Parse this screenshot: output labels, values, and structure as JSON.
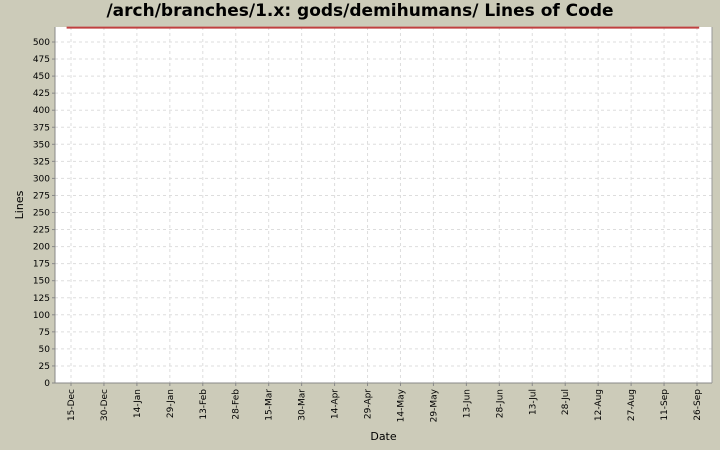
{
  "chart_data": {
    "type": "line",
    "title": "/arch/branches/1.x: gods/demihumans/ Lines of Code",
    "xlabel": "Date",
    "ylabel": "Lines",
    "ylim": [
      0,
      522
    ],
    "yticks": [
      0,
      25,
      50,
      75,
      100,
      125,
      150,
      175,
      200,
      225,
      250,
      275,
      300,
      325,
      350,
      375,
      400,
      425,
      450,
      475,
      500
    ],
    "xticks": [
      "15-Dec",
      "30-Dec",
      "14-Jan",
      "29-Jan",
      "13-Feb",
      "28-Feb",
      "15-Mar",
      "30-Mar",
      "14-Apr",
      "29-Apr",
      "14-May",
      "29-May",
      "13-Jun",
      "28-Jun",
      "13-Jul",
      "28-Jul",
      "12-Aug",
      "27-Aug",
      "11-Sep",
      "26-Sep"
    ],
    "grid": true,
    "series": [
      {
        "color": "#c04040",
        "x": [
          "13-Dec",
          "27-Sep"
        ],
        "y": [
          521,
          521
        ]
      }
    ],
    "colors": {
      "background": "#cccbb9",
      "plot": "#ffffff",
      "grid": "#dddddd"
    }
  }
}
